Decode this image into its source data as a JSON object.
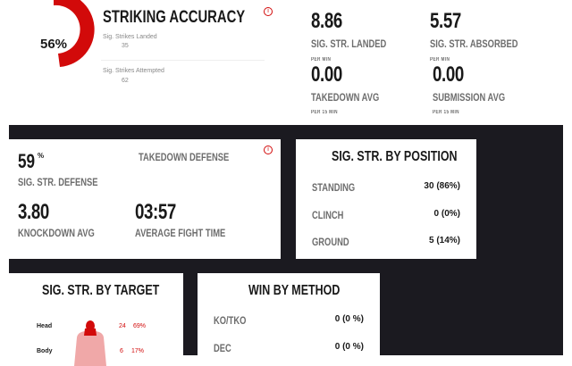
{
  "striking_accuracy": {
    "title": "STRIKING ACCURACY",
    "percent_label": "56%",
    "accuracy_percent": 56,
    "landed_label": "Sig. Strikes Landed",
    "landed_value": "35",
    "attempted_label": "Sig. Strikes Attempted",
    "attempted_value": "62",
    "info_icon": "info-icon"
  },
  "rates": [
    {
      "value": "8.86",
      "label": "SIG. STR. LANDED",
      "sub": "PER MIN"
    },
    {
      "value": "5.57",
      "label": "SIG. STR. ABSORBED",
      "sub": "PER MIN"
    },
    {
      "value": "0.00",
      "label": "TAKEDOWN AVG",
      "sub": "PER 15 MIN"
    },
    {
      "value": "0.00",
      "label": "SUBMISSION AVG",
      "sub": "PER 15 MIN"
    }
  ],
  "defense": {
    "value": "59",
    "unit": "%",
    "label": "SIG. STR. DEFENSE",
    "takedown_label": "TAKEDOWN DEFENSE",
    "knockdown_value": "3.80",
    "knockdown_label": "KNOCKDOWN AVG",
    "fight_time_value": "03:57",
    "fight_time_label": "AVERAGE FIGHT TIME"
  },
  "position": {
    "title": "SIG. STR. BY POSITION",
    "rows": [
      {
        "label": "STANDING",
        "value": "30 (86%)"
      },
      {
        "label": "CLINCH",
        "value": "0 (0%)"
      },
      {
        "label": "GROUND",
        "value": "5 (14%)"
      }
    ]
  },
  "target": {
    "title": "SIG. STR. BY TARGET",
    "rows": [
      {
        "label": "Head",
        "count": "24",
        "percent": "69%"
      },
      {
        "label": "Body",
        "count": "6",
        "percent": "17%"
      }
    ]
  },
  "win_method": {
    "title": "WIN BY METHOD",
    "rows": [
      {
        "label": "KO/TKO",
        "value": "0 (0 %)"
      },
      {
        "label": "DEC",
        "value": "0 (0 %)"
      }
    ]
  },
  "colors": {
    "accent": "#d20a0a",
    "background_dark": "#1b1a20",
    "body_light": "#f0a8a8"
  }
}
